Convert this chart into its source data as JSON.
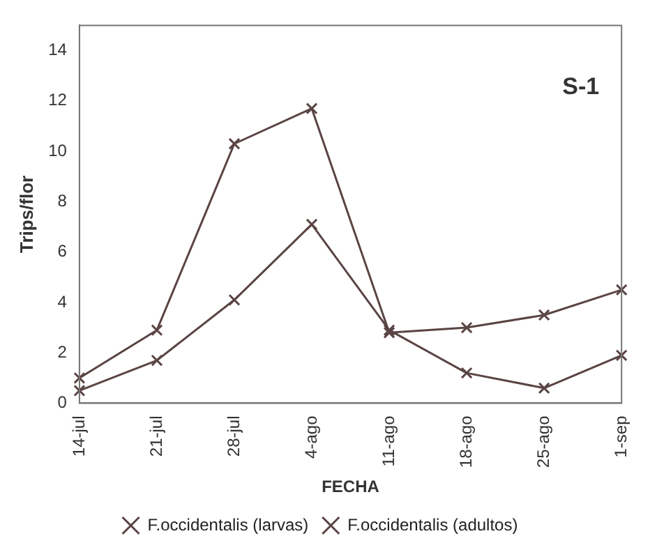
{
  "chart_data": {
    "type": "line",
    "xlabel": "FECHA",
    "ylabel": "Trips/flor",
    "annotations": [
      "S-1"
    ],
    "categories": [
      "14-jul",
      "21-jul",
      "28-jul",
      "4-ago",
      "11-ago",
      "18-ago",
      "25-ago",
      "1-sep"
    ],
    "series": [
      {
        "name": "F.occidentalis (larvas)",
        "color": "#5a4444",
        "values": [
          1.0,
          2.9,
          10.3,
          11.7,
          2.8,
          3.0,
          3.5,
          4.5
        ]
      },
      {
        "name": "F.occidentalis (adultos)",
        "color": "#5a4444",
        "values": [
          0.5,
          1.7,
          4.1,
          7.1,
          2.9,
          1.2,
          0.6,
          1.9
        ]
      }
    ],
    "ylim": [
      0,
      15
    ],
    "yticks": [
      0,
      2,
      4,
      6,
      8,
      10,
      12,
      14
    ],
    "grid": false,
    "legend": "bottom",
    "marker": "cross",
    "line_style": "solid"
  }
}
